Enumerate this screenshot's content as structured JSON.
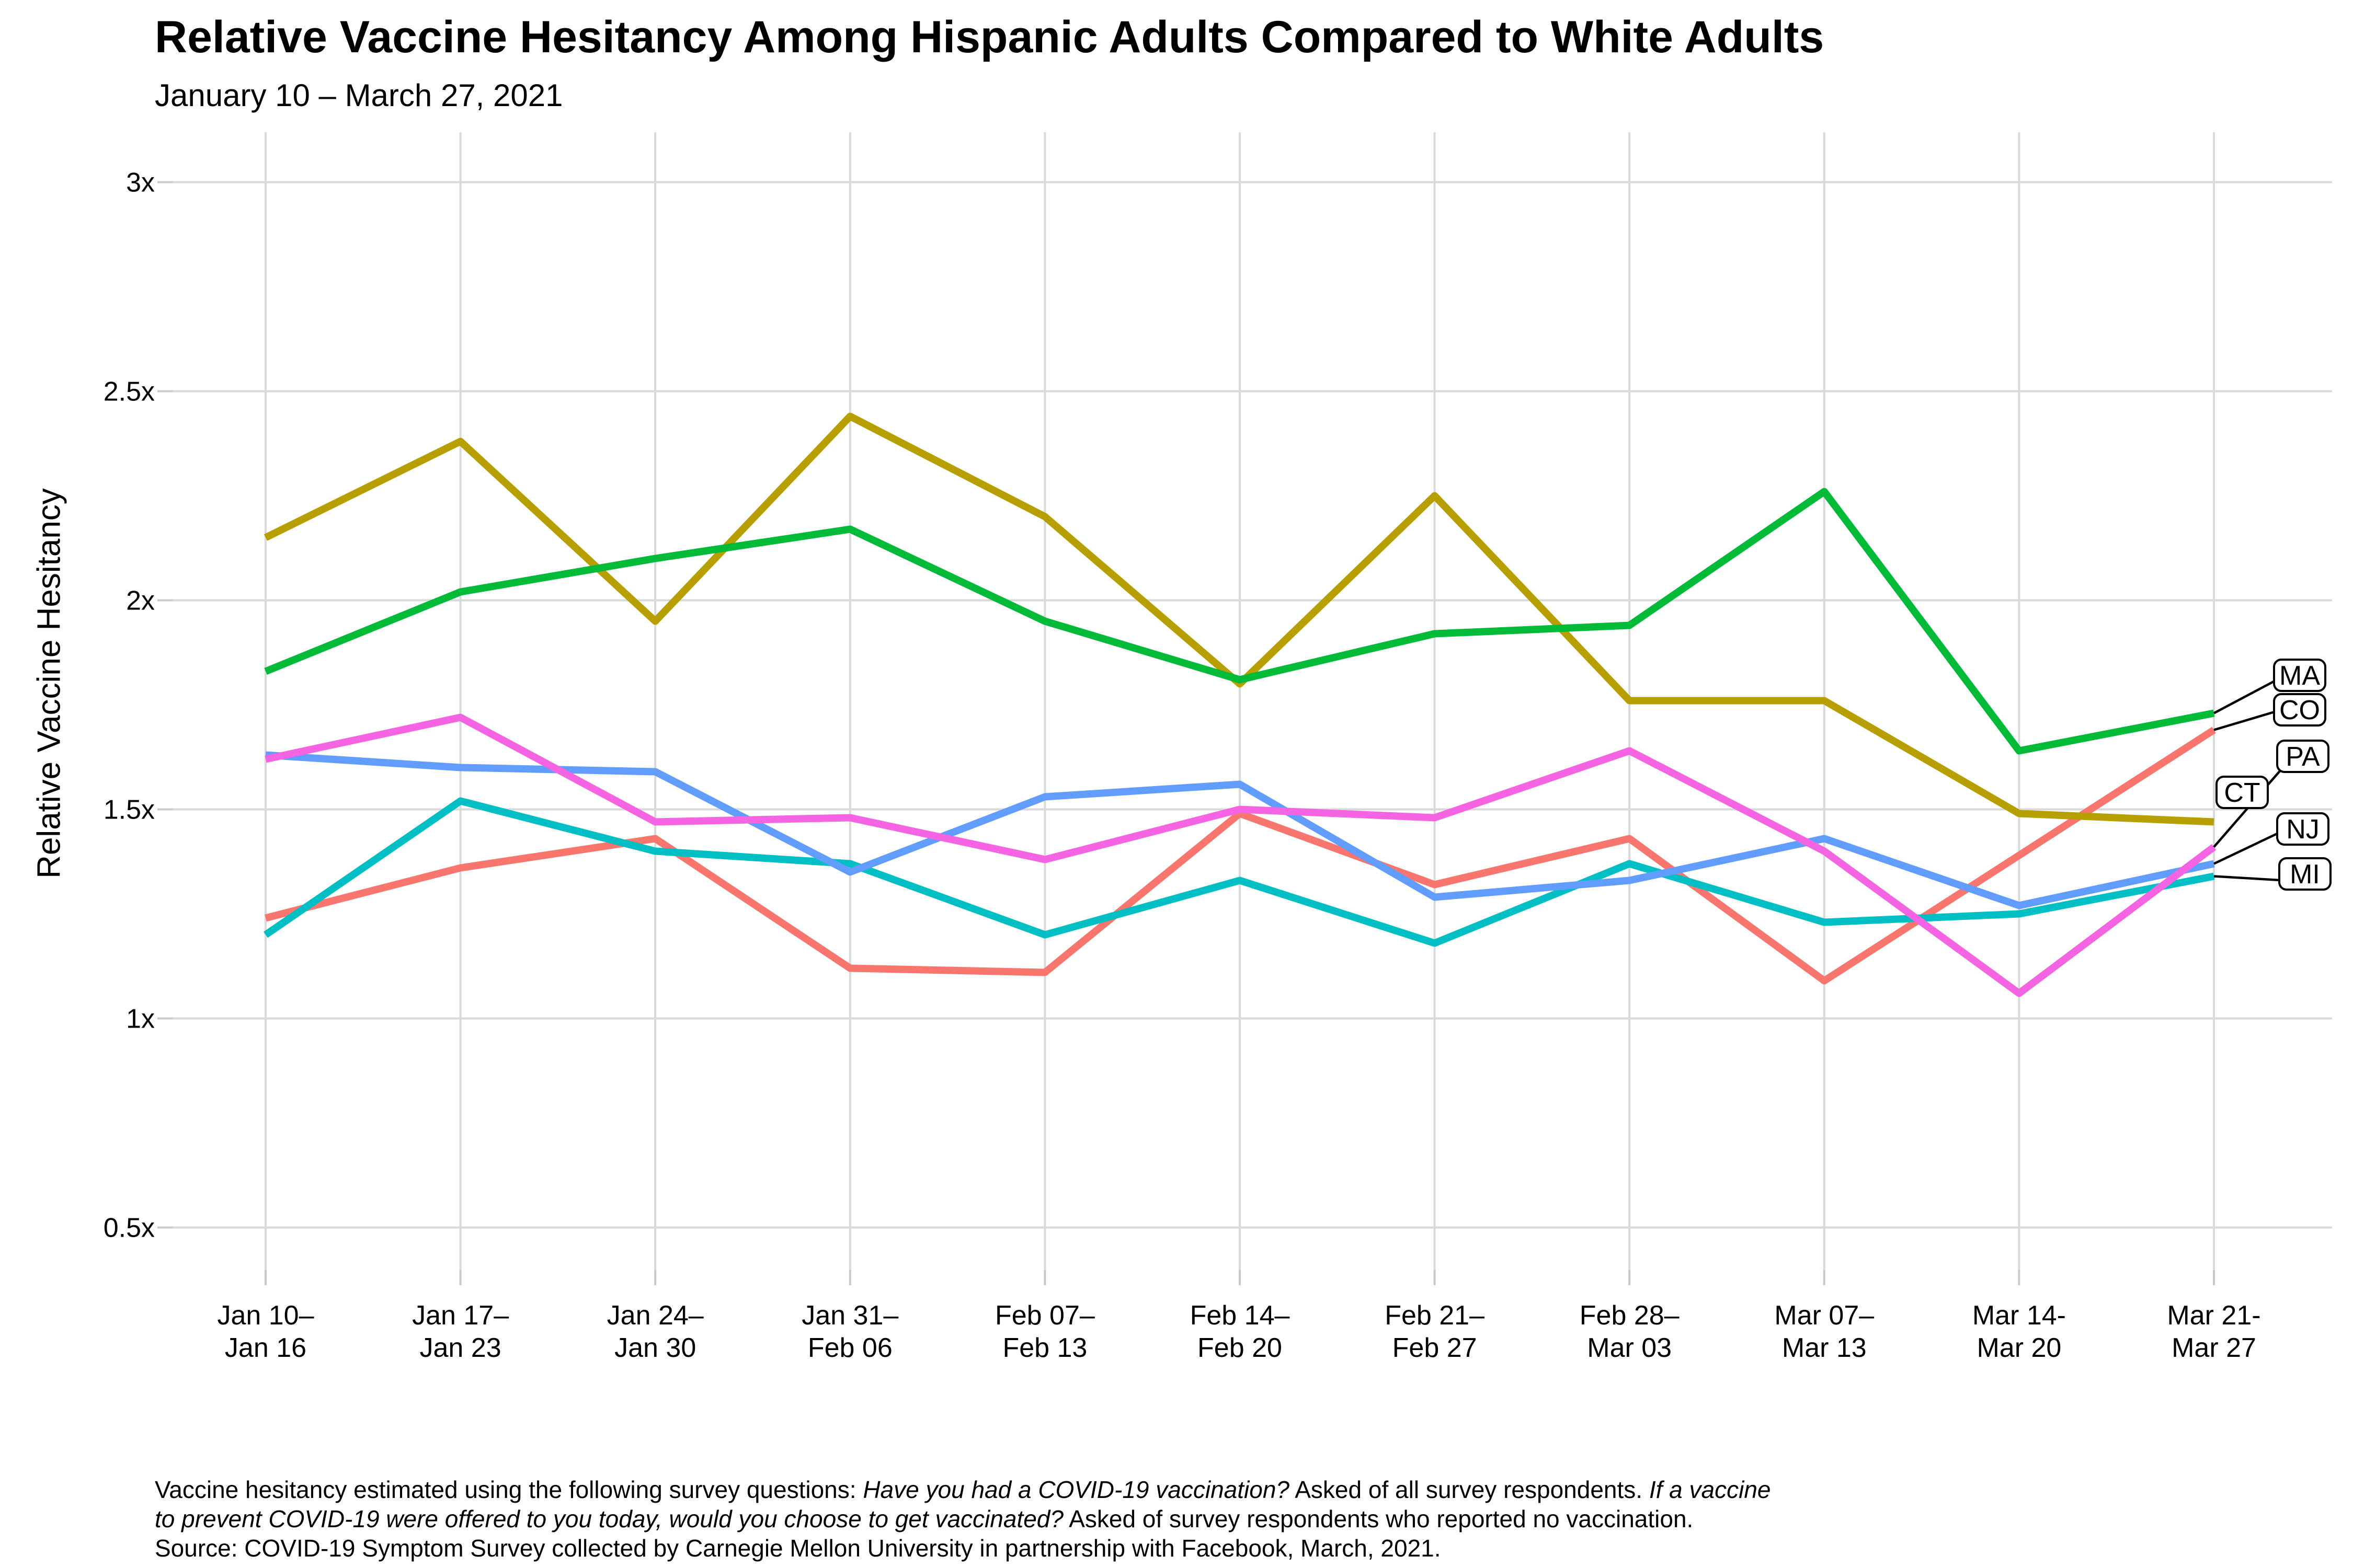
{
  "title": "Relative Vaccine Hesitancy Among Hispanic Adults Compared to White Adults",
  "subtitle": "January 10 – March 27, 2021",
  "y_axis": {
    "label": "Relative Vaccine Hesitancy",
    "ticks": [
      {
        "label": "3x",
        "value": 3.0
      },
      {
        "label": "2.5x",
        "value": 2.5
      },
      {
        "label": "2x",
        "value": 2.0
      },
      {
        "label": "1.5x",
        "value": 1.5
      },
      {
        "label": "1x",
        "value": 1.0
      },
      {
        "label": "0.5x",
        "value": 0.5
      }
    ]
  },
  "x_axis": {
    "ticks": [
      {
        "line1": "Jan 10–",
        "line2": "Jan 16"
      },
      {
        "line1": "Jan 17–",
        "line2": "Jan 23"
      },
      {
        "line1": "Jan 24–",
        "line2": "Jan 30"
      },
      {
        "line1": "Jan 31–",
        "line2": "Feb 06"
      },
      {
        "line1": "Feb 07–",
        "line2": "Feb 13"
      },
      {
        "line1": "Feb 14–",
        "line2": "Feb 20"
      },
      {
        "line1": "Feb 21–",
        "line2": "Feb 27"
      },
      {
        "line1": "Feb 28–",
        "line2": "Mar 03"
      },
      {
        "line1": "Mar 07–",
        "line2": "Mar 13"
      },
      {
        "line1": "Mar 14-",
        "line2": "Mar 20"
      },
      {
        "line1": "Mar 21-",
        "line2": "Mar 27"
      }
    ]
  },
  "chart_data": {
    "type": "line",
    "title": "Relative Vaccine Hesitancy Among Hispanic Adults Compared to White Adults",
    "subtitle": "January 10 – March 27, 2021",
    "xlabel": "",
    "ylabel": "Relative Vaccine Hesitancy",
    "ylim": [
      0.5,
      3.0
    ],
    "yticks": [
      "3x",
      "2.5x",
      "2x",
      "1.5x",
      "1x",
      "0.5x"
    ],
    "grid": true,
    "legend_position": "right-end-labels",
    "categories": [
      "Jan 10–Jan 16",
      "Jan 17–Jan 23",
      "Jan 24–Jan 30",
      "Jan 31–Feb 06",
      "Feb 07–Feb 13",
      "Feb 14–Feb 20",
      "Feb 21–Feb 27",
      "Feb 28–Mar 03",
      "Mar 07–Mar 13",
      "Mar 14-Mar 20",
      "Mar 21-Mar 27"
    ],
    "series": [
      {
        "name": "CO",
        "color": "#F8766D",
        "values": [
          1.24,
          1.36,
          1.43,
          1.12,
          1.11,
          1.49,
          1.32,
          1.43,
          1.09,
          1.39,
          1.69
        ]
      },
      {
        "name": "CT",
        "color": "#B79F00",
        "values": [
          2.15,
          2.38,
          1.95,
          2.44,
          2.2,
          1.8,
          2.25,
          1.76,
          1.76,
          1.49,
          1.47
        ]
      },
      {
        "name": "MA",
        "color": "#00BA38",
        "values": [
          1.83,
          2.02,
          2.1,
          2.17,
          1.95,
          1.81,
          1.92,
          1.94,
          2.26,
          1.64,
          1.73
        ]
      },
      {
        "name": "MI",
        "color": "#00BFC4",
        "values": [
          1.2,
          1.52,
          1.4,
          1.37,
          1.2,
          1.33,
          1.18,
          1.37,
          1.23,
          1.25,
          1.34
        ]
      },
      {
        "name": "NJ",
        "color": "#619CFF",
        "values": [
          1.63,
          1.6,
          1.59,
          1.35,
          1.53,
          1.56,
          1.29,
          1.33,
          1.43,
          1.27,
          1.37
        ]
      },
      {
        "name": "PA",
        "color": "#F564E3",
        "values": [
          1.62,
          1.72,
          1.47,
          1.48,
          1.38,
          1.5,
          1.48,
          1.64,
          1.4,
          1.06,
          1.41
        ]
      }
    ]
  },
  "end_labels": [
    "MA",
    "CO",
    "PA",
    "CT",
    "NJ",
    "MI"
  ],
  "colors": {
    "grid": "#D9D9D9",
    "tick": "#C9C9C9",
    "text": "#000000",
    "leader": "#000000",
    "label_box_fill": "#FFFFFF",
    "label_box_border": "#000000"
  },
  "footnote": {
    "lines": [
      [
        {
          "text": "Vaccine hesitancy estimated using the following survey questions: ",
          "italic": false
        },
        {
          "text": "Have you had a COVID-19 vaccination?",
          "italic": true
        },
        {
          "text": " Asked of all survey respondents. ",
          "italic": false
        },
        {
          "text": "If a vaccine",
          "italic": true
        }
      ],
      [
        {
          "text": "to prevent COVID-19 were offered to you today, would you choose to get vaccinated?",
          "italic": true
        },
        {
          "text": " Asked of survey respondents who reported no vaccination.",
          "italic": false
        }
      ],
      [
        {
          "text": "Source: COVID-19 Symptom Survey collected by Carnegie Mellon University in partnership with Facebook, March, 2021.",
          "italic": false
        }
      ]
    ]
  }
}
